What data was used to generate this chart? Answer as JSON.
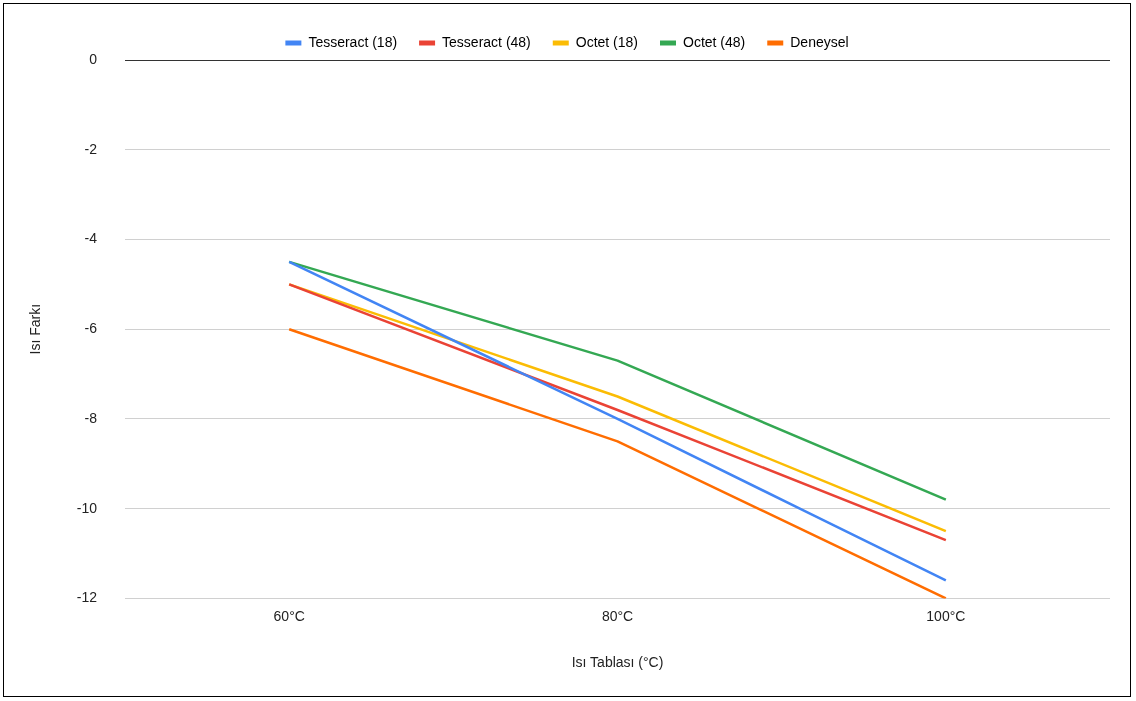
{
  "chart_data": {
    "type": "line",
    "xlabel": "Isı Tablası (°C)",
    "ylabel": "Isı Farkı",
    "categories": [
      "60°C",
      "80°C",
      "100°C"
    ],
    "series": [
      {
        "name": "Tesseract (18)",
        "color": "#4285f4",
        "values": [
          -4.5,
          -8.0,
          -11.6
        ]
      },
      {
        "name": "Tesseract (48)",
        "color": "#ea4335",
        "values": [
          -5,
          -7.8,
          -10.7
        ]
      },
      {
        "name": "Octet (18)",
        "color": "#fbbc04",
        "values": [
          -5,
          -7.5,
          -10.5
        ]
      },
      {
        "name": "Octet (48)",
        "color": "#34a853",
        "values": [
          -4.5,
          -6.7,
          -9.8
        ]
      },
      {
        "name": "Deneysel",
        "color": "#ff6d01",
        "values": [
          -6,
          -8.5,
          -12
        ]
      }
    ],
    "ylim": [
      -12,
      0
    ],
    "yticks": [
      -12,
      -10,
      -8,
      -6,
      -4,
      -2,
      0
    ],
    "grid": "y",
    "legend": "top",
    "marker": "none",
    "line_style": "solid"
  }
}
